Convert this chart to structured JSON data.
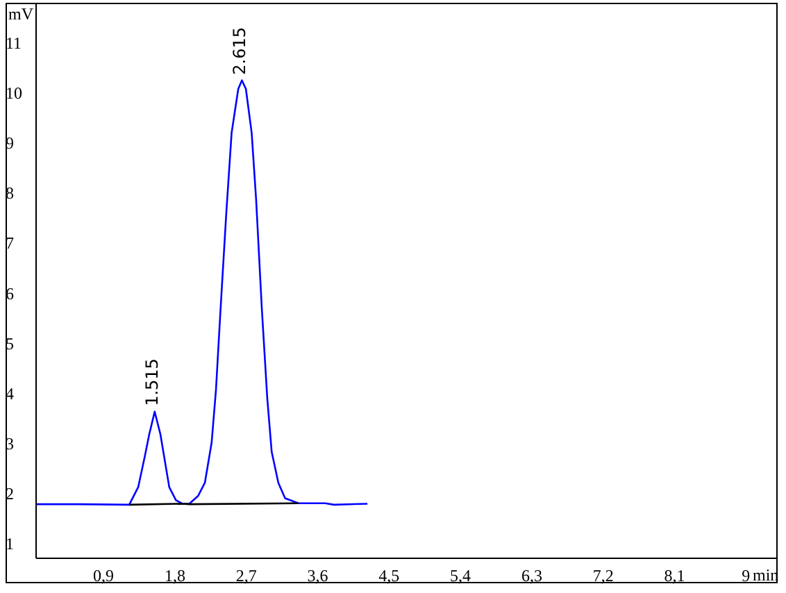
{
  "chart_data": {
    "type": "line",
    "xlabel": "min",
    "ylabel": "mV",
    "xlim": [
      0.05,
      9.4
    ],
    "ylim": [
      0.7,
      11.8
    ],
    "xticks": [
      {
        "value": 0.9,
        "label": "0,9"
      },
      {
        "value": 1.8,
        "label": "1,8"
      },
      {
        "value": 2.7,
        "label": "2,7"
      },
      {
        "value": 3.6,
        "label": "3,6"
      },
      {
        "value": 4.5,
        "label": "4,5"
      },
      {
        "value": 5.4,
        "label": "5,4"
      },
      {
        "value": 6.3,
        "label": "6,3"
      },
      {
        "value": 7.2,
        "label": "7,2"
      },
      {
        "value": 8.1,
        "label": "8,1"
      },
      9
    ],
    "yticks": [
      1,
      2,
      3,
      4,
      5,
      6,
      7,
      8,
      9,
      10,
      11
    ],
    "grid": false,
    "legend": false,
    "marker": "none",
    "line_style": "solid",
    "series": [
      {
        "color": "#0000ff",
        "x": [
          0.05,
          0.6,
          1.224,
          1.337,
          1.421,
          1.477,
          1.545,
          1.617,
          1.673,
          1.729,
          1.813,
          1.896,
          1.982,
          2.094,
          2.178,
          2.263,
          2.318,
          2.375,
          2.448,
          2.515,
          2.599,
          2.645,
          2.695,
          2.768,
          2.824,
          2.897,
          2.965,
          3.02,
          3.104,
          3.189,
          3.357,
          3.694,
          3.806,
          4.227
        ],
        "values": [
          1.78,
          1.78,
          1.77,
          2.12,
          2.74,
          3.18,
          3.63,
          3.18,
          2.65,
          2.12,
          1.86,
          1.79,
          1.79,
          1.95,
          2.21,
          3.01,
          4.07,
          5.66,
          7.6,
          9.2,
          10.08,
          10.25,
          10.08,
          9.2,
          7.87,
          5.66,
          3.89,
          2.83,
          2.21,
          1.9,
          1.8,
          1.8,
          1.77,
          1.79
        ]
      },
      {
        "color": "#000000",
        "x": [
          1.224,
          1.896,
          1.982,
          3.357
        ],
        "values": [
          1.77,
          1.79,
          1.78,
          1.8
        ]
      }
    ],
    "annotations": [
      {
        "text": "1.515",
        "x": 1.515,
        "y": 3.63
      },
      {
        "text": "2.615",
        "x": 2.615,
        "y": 10.25
      }
    ]
  }
}
